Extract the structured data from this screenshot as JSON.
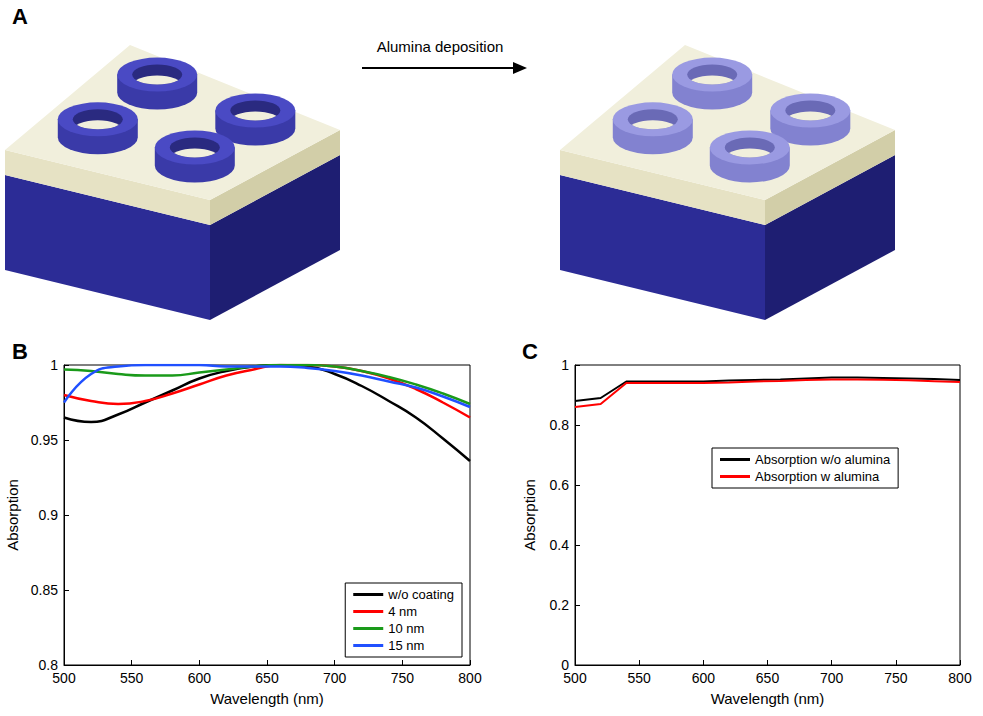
{
  "diagram": {
    "panel": "A",
    "arrow_label": "Alumina deposition"
  },
  "chart_data": [
    {
      "panel": "B",
      "type": "line",
      "x": [
        500,
        520,
        540,
        560,
        580,
        600,
        620,
        640,
        660,
        680,
        700,
        720,
        740,
        760,
        780,
        800
      ],
      "series": [
        {
          "name": "w/o coating",
          "color": "#000000",
          "values": [
            0.965,
            0.962,
            0.967,
            0.975,
            0.983,
            0.991,
            0.996,
            0.999,
            1.0,
            0.999,
            0.994,
            0.986,
            0.976,
            0.965,
            0.951,
            0.936
          ]
        },
        {
          "name": "4 nm",
          "color": "#ff0000",
          "values": [
            0.98,
            0.976,
            0.974,
            0.976,
            0.981,
            0.987,
            0.993,
            0.997,
            1.0,
            1.0,
            0.999,
            0.996,
            0.991,
            0.984,
            0.975,
            0.965
          ]
        },
        {
          "name": "10 nm",
          "color": "#1a9a1a",
          "values": [
            0.997,
            0.996,
            0.994,
            0.993,
            0.993,
            0.995,
            0.997,
            0.999,
            1.0,
            1.0,
            0.999,
            0.996,
            0.992,
            0.987,
            0.981,
            0.974
          ]
        },
        {
          "name": "15 nm",
          "color": "#2050ff",
          "values": [
            0.975,
            0.994,
            0.999,
            1.0,
            1.0,
            1.0,
            0.999,
            0.999,
            0.999,
            0.998,
            0.996,
            0.993,
            0.989,
            0.985,
            0.979,
            0.972
          ]
        }
      ],
      "x_label": "Wavelength (nm)",
      "y_label": "Absorption",
      "xlim": [
        500,
        800
      ],
      "xticks": [
        500,
        550,
        600,
        650,
        700,
        750,
        800
      ],
      "ylim": [
        0.8,
        1
      ],
      "yticks": [
        0.8,
        0.85,
        0.9,
        0.95,
        1
      ],
      "grid": false,
      "legend": "lower right"
    },
    {
      "panel": "C",
      "type": "line",
      "x": [
        500,
        520,
        540,
        560,
        580,
        600,
        620,
        640,
        660,
        680,
        700,
        720,
        740,
        760,
        780,
        800
      ],
      "series": [
        {
          "name": "Absorption w/o alumina",
          "color": "#000000",
          "values": [
            0.88,
            0.89,
            0.945,
            0.945,
            0.945,
            0.945,
            0.948,
            0.95,
            0.952,
            0.955,
            0.958,
            0.958,
            0.957,
            0.955,
            0.953,
            0.95
          ]
        },
        {
          "name": "Absorption w alumina",
          "color": "#ff0000",
          "values": [
            0.86,
            0.87,
            0.94,
            0.94,
            0.94,
            0.94,
            0.942,
            0.945,
            0.947,
            0.95,
            0.952,
            0.952,
            0.951,
            0.949,
            0.946,
            0.943
          ]
        }
      ],
      "x_label": "Wavelength (nm)",
      "y_label": "Absorption",
      "xlim": [
        500,
        800
      ],
      "xticks": [
        500,
        550,
        600,
        650,
        700,
        750,
        800
      ],
      "ylim": [
        0,
        1
      ],
      "yticks": [
        0,
        0.2,
        0.4,
        0.6,
        0.8,
        1
      ],
      "grid": false,
      "legend": "right"
    }
  ]
}
